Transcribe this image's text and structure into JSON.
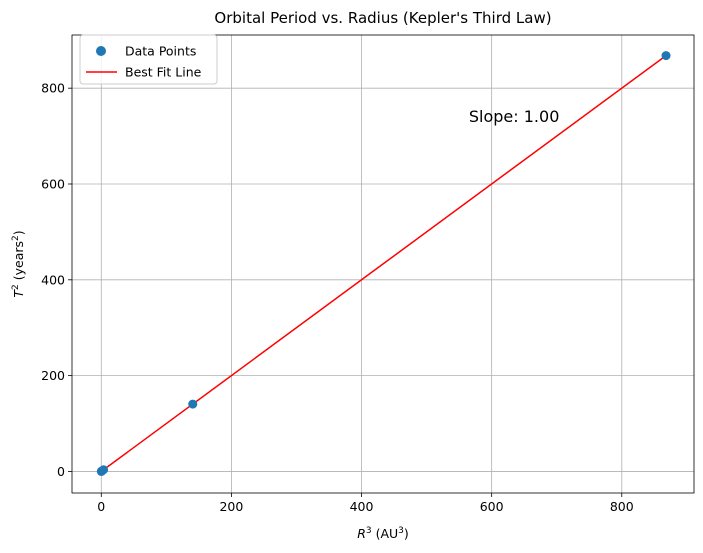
{
  "chart_data": {
    "type": "scatter",
    "title": "Orbital Period vs. Radius (Kepler's Third Law)",
    "xlabel": {
      "base": "R",
      "sup": "3",
      "units_pre": " (AU",
      "units_sup": "3",
      "units_post": ")"
    },
    "ylabel": {
      "base": "T",
      "sup": "2",
      "units_pre": " (years",
      "units_sup": "2",
      "units_post": ")"
    },
    "xlim": [
      -45,
      911
    ],
    "ylim": [
      -45,
      911
    ],
    "xticks": [
      0,
      200,
      400,
      600,
      800
    ],
    "yticks": [
      0,
      200,
      400,
      600,
      800
    ],
    "grid": true,
    "legend_position": "top-left",
    "series": [
      {
        "name": "Data Points",
        "kind": "scatter",
        "color": "#1f77b4",
        "x": [
          0.06,
          0.38,
          1.0,
          3.53,
          140.6,
          868
        ],
        "y": [
          0.06,
          0.38,
          1.0,
          3.53,
          140.6,
          868
        ]
      },
      {
        "name": "Best Fit Line",
        "kind": "line",
        "color": "#ff0000",
        "x": [
          0.06,
          868
        ],
        "y": [
          0.06,
          868
        ]
      }
    ],
    "annotation": {
      "text": "Slope: 1.00",
      "x": 565,
      "y": 740
    }
  }
}
